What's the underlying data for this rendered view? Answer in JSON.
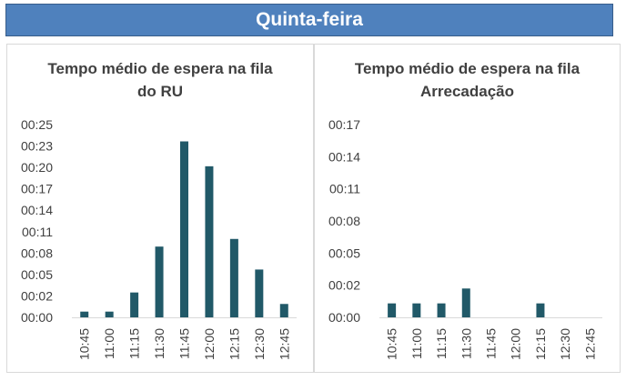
{
  "banner": {
    "title": "Quinta-feira"
  },
  "colors": {
    "banner": "#4f81bd",
    "bar": "#215968",
    "text": "#404040"
  },
  "chart_data": [
    {
      "type": "bar",
      "title_lines": [
        "Tempo médio de espera na fila",
        "do RU"
      ],
      "categories": [
        "10:45",
        "11:00",
        "11:15",
        "11:30",
        "11:45",
        "12:00",
        "12:15",
        "12:30",
        "12:45"
      ],
      "values_seconds": [
        45,
        45,
        195,
        555,
        1380,
        1185,
        615,
        375,
        105
      ],
      "ytick_labels": [
        "00:00",
        "00:02",
        "00:05",
        "00:08",
        "00:11",
        "00:14",
        "00:17",
        "00:20",
        "00:23",
        "00:25"
      ],
      "ylim_seconds": [
        0,
        1512
      ],
      "grid": false
    },
    {
      "type": "bar",
      "title_lines": [
        "Tempo médio de espera na fila",
        "Arrecadação"
      ],
      "categories": [
        "10:45",
        "11:00",
        "11:15",
        "11:30",
        "11:45",
        "12:00",
        "12:15",
        "12:30",
        "12:45"
      ],
      "values_seconds": [
        75,
        75,
        75,
        155,
        0,
        0,
        75,
        0,
        0
      ],
      "ytick_labels": [
        "00:00",
        "00:02",
        "00:05",
        "00:08",
        "00:11",
        "00:14",
        "00:17"
      ],
      "ylim_seconds": [
        0,
        1036
      ],
      "grid": false
    }
  ]
}
